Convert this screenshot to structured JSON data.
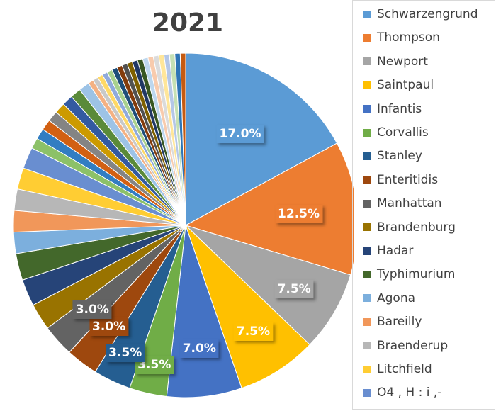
{
  "chart_data": {
    "type": "pie",
    "title": "2021",
    "slices": [
      {
        "name": "Schwarzengrund",
        "value": 17.0,
        "color": "#5b9bd5",
        "label": "17.0%"
      },
      {
        "name": "Thompson",
        "value": 12.5,
        "color": "#ed7d31",
        "label": "12.5%"
      },
      {
        "name": "Newport",
        "value": 7.5,
        "color": "#a5a5a5",
        "label": "7.5%"
      },
      {
        "name": "Saintpaul",
        "value": 7.5,
        "color": "#ffc000",
        "label": "7.5%"
      },
      {
        "name": "Infantis",
        "value": 7.0,
        "color": "#4472c4",
        "label": "7.0%"
      },
      {
        "name": "Corvallis",
        "value": 3.5,
        "color": "#70ad47",
        "label": "3.5%"
      },
      {
        "name": "Stanley",
        "value": 3.5,
        "color": "#255e91",
        "label": "3.5%"
      },
      {
        "name": "Enteritidis",
        "value": 3.0,
        "color": "#9e480e",
        "label": "3.0%"
      },
      {
        "name": "Manhattan",
        "value": 3.0,
        "color": "#636363",
        "label": "3.0%"
      },
      {
        "name": "Brandenburg",
        "value": 2.5,
        "color": "#997300",
        "label": ""
      },
      {
        "name": "Hadar",
        "value": 2.5,
        "color": "#264478",
        "label": ""
      },
      {
        "name": "Typhimurium",
        "value": 2.5,
        "color": "#43682b",
        "label": ""
      },
      {
        "name": "Agona",
        "value": 2.0,
        "color": "#7cafdd",
        "label": ""
      },
      {
        "name": "Bareilly",
        "value": 2.0,
        "color": "#f1975a",
        "label": ""
      },
      {
        "name": "Braenderup",
        "value": 2.0,
        "color": "#b7b7b7",
        "label": ""
      },
      {
        "name": "Litchfield",
        "value": 2.0,
        "color": "#ffcd33",
        "label": ""
      },
      {
        "name": "O4 , H : i ,-",
        "value": 2.0,
        "color": "#698ed0",
        "label": ""
      },
      {
        "name": "",
        "value": 1.0,
        "color": "#8cc168",
        "label": ""
      },
      {
        "name": "",
        "value": 1.0,
        "color": "#327dc2",
        "label": ""
      },
      {
        "name": "",
        "value": 1.0,
        "color": "#d26012",
        "label": ""
      },
      {
        "name": "",
        "value": 1.0,
        "color": "#848484",
        "label": ""
      },
      {
        "name": "",
        "value": 1.0,
        "color": "#cc9a00",
        "label": ""
      },
      {
        "name": "",
        "value": 1.0,
        "color": "#335aa1",
        "label": ""
      },
      {
        "name": "",
        "value": 1.0,
        "color": "#5a8a39",
        "label": ""
      },
      {
        "name": "",
        "value": 1.0,
        "color": "#9dc3e6",
        "label": ""
      },
      {
        "name": "",
        "value": 0.5,
        "color": "#f4b183",
        "label": ""
      },
      {
        "name": "",
        "value": 0.5,
        "color": "#c9c9c9",
        "label": ""
      },
      {
        "name": "",
        "value": 0.5,
        "color": "#ffd966",
        "label": ""
      },
      {
        "name": "",
        "value": 0.5,
        "color": "#8faadc",
        "label": ""
      },
      {
        "name": "",
        "value": 0.5,
        "color": "#a9d18e",
        "label": ""
      },
      {
        "name": "",
        "value": 0.5,
        "color": "#1f4e79",
        "label": ""
      },
      {
        "name": "",
        "value": 0.5,
        "color": "#843c0c",
        "label": ""
      },
      {
        "name": "",
        "value": 0.5,
        "color": "#525252",
        "label": ""
      },
      {
        "name": "",
        "value": 0.5,
        "color": "#7f6000",
        "label": ""
      },
      {
        "name": "",
        "value": 0.5,
        "color": "#203864",
        "label": ""
      },
      {
        "name": "",
        "value": 0.5,
        "color": "#385723",
        "label": ""
      },
      {
        "name": "",
        "value": 0.5,
        "color": "#bdd7ee",
        "label": ""
      },
      {
        "name": "",
        "value": 0.5,
        "color": "#f8cbad",
        "label": ""
      },
      {
        "name": "",
        "value": 0.5,
        "color": "#dbdbdb",
        "label": ""
      },
      {
        "name": "",
        "value": 0.5,
        "color": "#ffe699",
        "label": ""
      },
      {
        "name": "",
        "value": 0.5,
        "color": "#b4c7e7",
        "label": ""
      },
      {
        "name": "",
        "value": 0.5,
        "color": "#c5e0b4",
        "label": ""
      },
      {
        "name": "",
        "value": 0.5,
        "color": "#2e75b6",
        "label": ""
      },
      {
        "name": "",
        "value": 0.5,
        "color": "#c55a11",
        "label": ""
      }
    ],
    "legend_position": "right"
  }
}
